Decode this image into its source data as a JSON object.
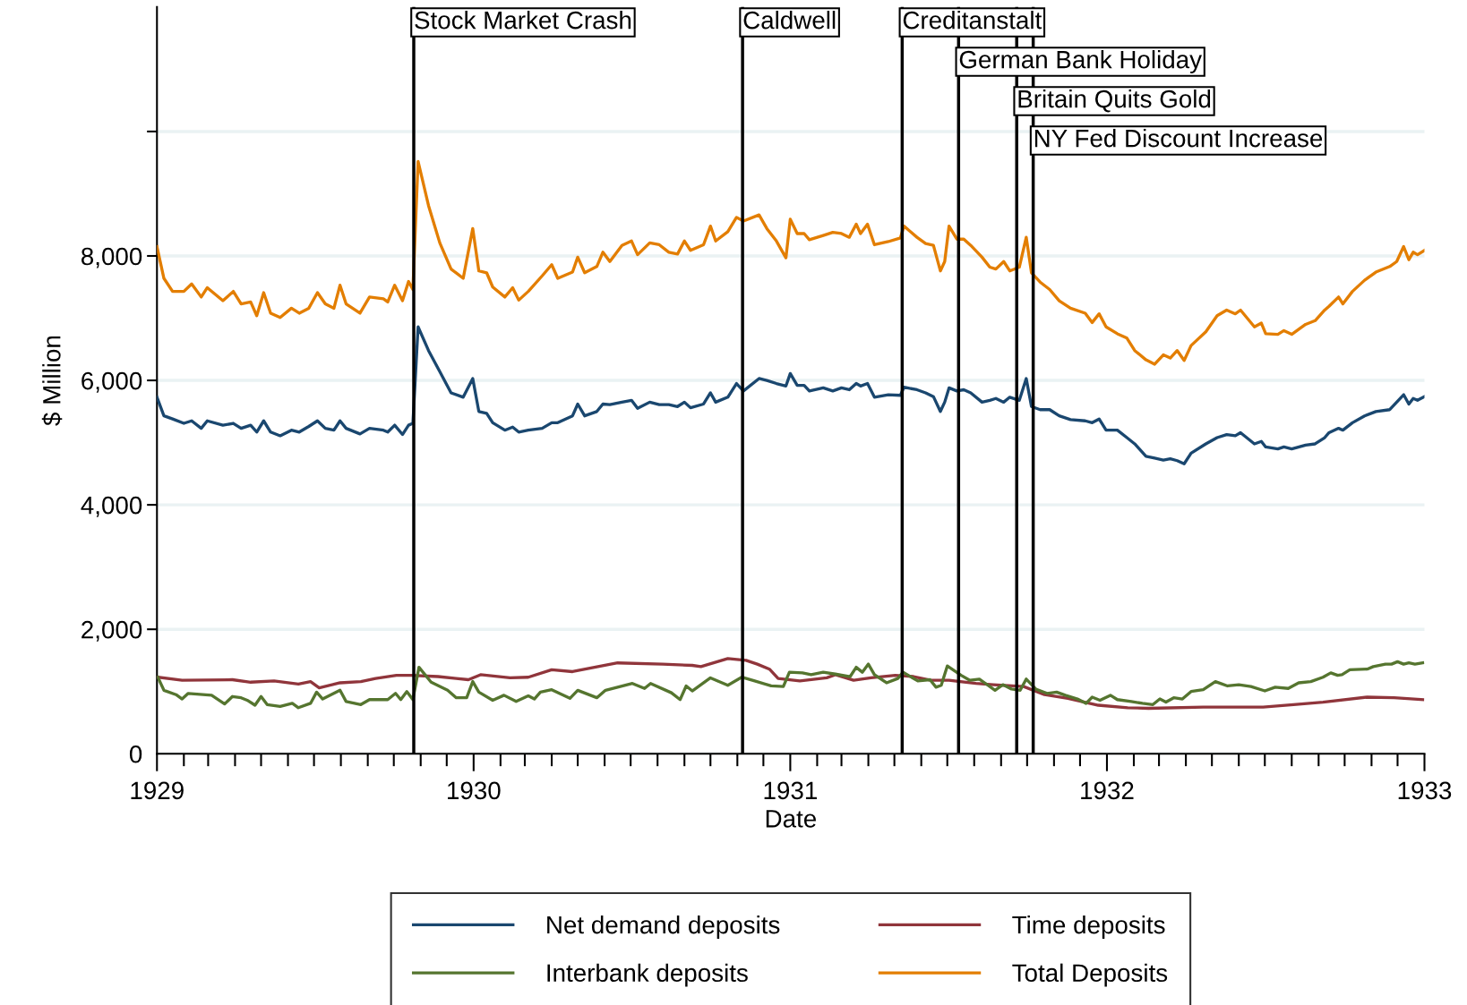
{
  "chart_data": {
    "type": "line",
    "xlabel": "Date",
    "ylabel": "$ Million",
    "xlim": [
      "1929",
      "1933"
    ],
    "ylim": [
      0,
      12000
    ],
    "xticks": [
      "1929",
      {
        "value": "1929-02",
        "label": null
      },
      {
        "value": "1929-03",
        "label": null
      },
      {
        "value": "1929-04",
        "label": null
      },
      {
        "value": "1929-05",
        "label": null
      },
      {
        "value": "1929-06",
        "label": null
      },
      {
        "value": "1929-07",
        "label": null
      },
      {
        "value": "1929-08",
        "label": null
      },
      {
        "value": "1929-09",
        "label": null
      },
      {
        "value": "1929-10",
        "label": null
      },
      {
        "value": "1929-11",
        "label": null
      },
      {
        "value": "1929-12",
        "label": null
      },
      "1930",
      {
        "value": "1930-02",
        "label": null
      },
      {
        "value": "1930-03",
        "label": null
      },
      {
        "value": "1930-04",
        "label": null
      },
      {
        "value": "1930-05",
        "label": null
      },
      {
        "value": "1930-06",
        "label": null
      },
      {
        "value": "1930-07",
        "label": null
      },
      {
        "value": "1930-08",
        "label": null
      },
      {
        "value": "1930-09",
        "label": null
      },
      {
        "value": "1930-10",
        "label": null
      },
      {
        "value": "1930-11",
        "label": null
      },
      {
        "value": "1930-12",
        "label": null
      },
      "1931",
      {
        "value": "1931-02",
        "label": null
      },
      {
        "value": "1931-03",
        "label": null
      },
      {
        "value": "1931-04",
        "label": null
      },
      {
        "value": "1931-05",
        "label": null
      },
      {
        "value": "1931-06",
        "label": null
      },
      {
        "value": "1931-07",
        "label": null
      },
      {
        "value": "1931-08",
        "label": null
      },
      {
        "value": "1931-09",
        "label": null
      },
      {
        "value": "1931-10",
        "label": null
      },
      {
        "value": "1931-11",
        "label": null
      },
      {
        "value": "1931-12",
        "label": null
      },
      "1932",
      {
        "value": "1932-02",
        "label": null
      },
      {
        "value": "1932-03",
        "label": null
      },
      {
        "value": "1932-04",
        "label": null
      },
      {
        "value": "1932-05",
        "label": null
      },
      {
        "value": "1932-06",
        "label": null
      },
      {
        "value": "1932-07",
        "label": null
      },
      {
        "value": "1932-08",
        "label": null
      },
      {
        "value": "1932-09",
        "label": null
      },
      {
        "value": "1932-10",
        "label": null
      },
      {
        "value": "1932-11",
        "label": null
      },
      {
        "value": "1932-12",
        "label": null
      },
      "1933"
    ],
    "yticks": [
      0,
      {
        "value": 2000,
        "label": "2,000"
      },
      {
        "value": 4000,
        "label": "4,000"
      },
      {
        "value": 6000,
        "label": "6,000"
      },
      {
        "value": 8000,
        "label": "8,000"
      },
      {
        "value": 10000,
        "label": null
      }
    ],
    "grid": "y",
    "legend": "bottom",
    "line_style": "solid",
    "marker": "none",
    "x": [
      "1929-01-01",
      "1929-01-09",
      "1929-01-19",
      "1929-02-01",
      "1929-02-10",
      "1929-02-21",
      "1929-02-28",
      "1929-03-18",
      "1929-03-30",
      "1929-04-08",
      "1929-04-19",
      "1929-04-26",
      "1929-05-04",
      "1929-05-12",
      "1929-05-23",
      "1929-06-05",
      "1929-06-14",
      "1929-06-25",
      "1929-07-05",
      "1929-07-14",
      "1929-07-24",
      "1929-07-31",
      "1929-08-07",
      "1929-08-23",
      "1929-09-03",
      "1929-09-19",
      "1929-09-24",
      "1929-10-02",
      "1929-10-11",
      "1929-10-18",
      "1929-10-23",
      "1929-10-29",
      "1929-11-10",
      "1929-11-23",
      "1929-12-06",
      "1929-12-20",
      "1929-12-31",
      "1930-01-07",
      "1930-01-16",
      "1930-01-23",
      "1930-02-06",
      "1930-02-15",
      "1930-02-22",
      "1930-03-05",
      "1930-03-21",
      "1930-04-01",
      "1930-04-08",
      "1930-04-25",
      "1930-05-01",
      "1930-05-09",
      "1930-05-23",
      "1930-05-30",
      "1930-06-07",
      "1930-06-21",
      "1930-07-02",
      "1930-07-09",
      "1930-07-23",
      "1930-08-03",
      "1930-08-14",
      "1930-08-24",
      "1930-09-01",
      "1930-09-08",
      "1930-09-23",
      "1930-10-01",
      "1930-10-07",
      "1930-10-21",
      "1930-10-31",
      "1930-11-08",
      "1930-11-26",
      "1930-12-05",
      "1930-12-16",
      "1930-12-27",
      "1931-01-01",
      "1931-01-09",
      "1931-01-17",
      "1931-01-23",
      "1931-02-08",
      "1931-02-19",
      "1931-03-01",
      "1931-03-10",
      "1931-03-18",
      "1931-03-23",
      "1931-03-31",
      "1931-04-08",
      "1931-04-24",
      "1931-05-08",
      "1931-05-12",
      "1931-05-27",
      "1931-06-06",
      "1931-06-15",
      "1931-06-23",
      "1931-06-28",
      "1931-07-03",
      "1931-07-12",
      "1931-07-20",
      "1931-07-28",
      "1931-08-10",
      "1931-08-19",
      "1931-08-26",
      "1931-09-04",
      "1931-09-11",
      "1931-09-22",
      "1931-09-30",
      "1931-10-06",
      "1931-10-16",
      "1931-10-27",
      "1931-11-07",
      "1931-11-20",
      "1931-12-07",
      "1931-12-15",
      "1931-12-23",
      "1931-12-31",
      "1932-01-13",
      "1932-01-24",
      "1932-02-02",
      "1932-02-15",
      "1932-02-25",
      "1932-03-06",
      "1932-03-14",
      "1932-03-22",
      "1932-03-30",
      "1932-04-07",
      "1932-04-24",
      "1932-05-07",
      "1932-05-18",
      "1932-05-28",
      "1932-06-03",
      "1932-06-19",
      "1932-06-27",
      "1932-07-02",
      "1932-07-16",
      "1932-07-23",
      "1932-08-01",
      "1932-08-17",
      "1932-08-28",
      "1932-09-08",
      "1932-09-13",
      "1932-09-24",
      "1932-09-29",
      "1932-10-10",
      "1932-10-24",
      "1932-11-06",
      "1932-11-22",
      "1932-11-30",
      "1932-12-08",
      "1932-12-14",
      "1932-12-19",
      "1932-12-24",
      "1933-01-01"
    ],
    "series": [
      {
        "name": "Net demand deposits",
        "color": "#1a476f",
        "values": [
          5730,
          5430,
          5380,
          5310,
          5350,
          5230,
          5350,
          5280,
          5310,
          5230,
          5280,
          5170,
          5350,
          5170,
          5110,
          5200,
          5170,
          5260,
          5350,
          5230,
          5200,
          5350,
          5230,
          5140,
          5230,
          5200,
          5170,
          5280,
          5130,
          5280,
          5310,
          6860,
          6480,
          6140,
          5800,
          5730,
          6030,
          5500,
          5470,
          5320,
          5200,
          5250,
          5170,
          5200,
          5230,
          5320,
          5320,
          5430,
          5620,
          5430,
          5500,
          5620,
          5610,
          5650,
          5680,
          5550,
          5650,
          5610,
          5610,
          5580,
          5650,
          5560,
          5620,
          5800,
          5650,
          5730,
          5950,
          5830,
          6030,
          6000,
          5950,
          5910,
          6110,
          5920,
          5920,
          5830,
          5880,
          5830,
          5880,
          5850,
          5950,
          5910,
          5950,
          5730,
          5770,
          5760,
          5890,
          5850,
          5800,
          5740,
          5500,
          5650,
          5880,
          5830,
          5850,
          5800,
          5650,
          5680,
          5710,
          5650,
          5730,
          5680,
          6030,
          5580,
          5530,
          5530,
          5430,
          5370,
          5350,
          5320,
          5380,
          5200,
          5200,
          5080,
          4980,
          4780,
          4750,
          4720,
          4740,
          4710,
          4660,
          4830,
          4980,
          5080,
          5130,
          5110,
          5160,
          4980,
          5020,
          4930,
          4900,
          4930,
          4900,
          4960,
          4980,
          5080,
          5160,
          5230,
          5200,
          5320,
          5430,
          5500,
          5530,
          5650,
          5770,
          5620,
          5710,
          5680,
          5740
        ]
      },
      {
        "name": "Time deposits",
        "color": "#90353b",
        "x": [
          "1929-01-02",
          "1929-01-30",
          "1929-03-29",
          "1929-04-19",
          "1929-05-16",
          "1929-06-13",
          "1929-06-27",
          "1929-07-07",
          "1929-07-31",
          "1929-08-24",
          "1929-09-10",
          "1929-10-04",
          "1929-10-21",
          "1929-11-21",
          "1929-12-12",
          "1929-12-26",
          "1930-01-09",
          "1930-02-12",
          "1930-03-05",
          "1930-04-01",
          "1930-04-25",
          "1930-06-16",
          "1930-08-07",
          "1930-09-10",
          "1930-09-20",
          "1930-10-21",
          "1930-11-11",
          "1930-11-24",
          "1930-12-08",
          "1930-12-18",
          "1931-01-12",
          "1931-02-12",
          "1931-02-22",
          "1931-03-15",
          "1931-04-04",
          "1931-05-02",
          "1931-05-23",
          "1931-06-12",
          "1931-07-03",
          "1931-08-03",
          "1931-08-23",
          "1931-09-27",
          "1931-10-21",
          "1931-11-17",
          "1931-12-22",
          "1932-01-25",
          "1932-02-18",
          "1932-04-21",
          "1932-06-29",
          "1932-08-03",
          "1932-09-06",
          "1932-10-27",
          "1932-11-27",
          "1932-12-30"
        ],
        "values": [
          1230,
          1180,
          1190,
          1150,
          1170,
          1120,
          1160,
          1060,
          1140,
          1160,
          1210,
          1260,
          1260,
          1240,
          1210,
          1190,
          1270,
          1220,
          1230,
          1350,
          1320,
          1460,
          1440,
          1420,
          1400,
          1530,
          1500,
          1440,
          1360,
          1210,
          1170,
          1220,
          1270,
          1180,
          1220,
          1260,
          1240,
          1180,
          1180,
          1130,
          1110,
          1080,
          950,
          890,
          780,
          740,
          730,
          750,
          750,
          790,
          830,
          910,
          900,
          870
        ]
      },
      {
        "name": "Interbank deposits",
        "color": "#55752f",
        "x": [
          "1929-01-02",
          "1929-01-09",
          "1929-01-23",
          "1929-01-30",
          "1929-02-06",
          "1929-03-05",
          "1929-03-20",
          "1929-03-29",
          "1929-04-08",
          "1929-04-15",
          "1929-04-24",
          "1929-05-01",
          "1929-05-08",
          "1929-05-23",
          "1929-06-06",
          "1929-06-13",
          "1929-06-27",
          "1929-07-04",
          "1929-07-11",
          "1929-07-31",
          "1929-08-07",
          "1929-08-24",
          "1929-09-03",
          "1929-09-24",
          "1929-10-03",
          "1929-10-09",
          "1929-10-16",
          "1929-10-23",
          "1929-10-30",
          "1929-11-13",
          "1929-12-02",
          "1929-12-12",
          "1929-12-24",
          "1929-12-31",
          "1930-01-07",
          "1930-01-23",
          "1930-02-05",
          "1930-02-19",
          "1930-03-05",
          "1930-03-12",
          "1930-03-19",
          "1930-04-01",
          "1930-04-22",
          "1930-05-01",
          "1930-05-23",
          "1930-06-02",
          "1930-07-03",
          "1930-07-17",
          "1930-07-24",
          "1930-08-17",
          "1930-08-27",
          "1930-09-03",
          "1930-09-10",
          "1930-10-01",
          "1930-10-21",
          "1930-11-06",
          "1930-11-21",
          "1930-12-10",
          "1930-12-24",
          "1930-12-31",
          "1931-01-15",
          "1931-01-25",
          "1931-02-08",
          "1931-02-22",
          "1931-03-11",
          "1931-03-18",
          "1931-03-25",
          "1931-04-01",
          "1931-04-08",
          "1931-04-22",
          "1931-05-05",
          "1931-05-11",
          "1931-05-28",
          "1931-06-11",
          "1931-06-18",
          "1931-06-24",
          "1931-07-01",
          "1931-07-17",
          "1931-07-27",
          "1931-08-07",
          "1931-08-13",
          "1931-08-25",
          "1931-09-03",
          "1931-09-13",
          "1931-09-23",
          "1931-09-30",
          "1931-10-11",
          "1931-10-24",
          "1931-11-04",
          "1931-11-14",
          "1931-11-28",
          "1931-12-08",
          "1931-12-15",
          "1931-12-24",
          "1932-01-05",
          "1932-01-13",
          "1932-01-29",
          "1932-02-11",
          "1932-02-23",
          "1932-03-02",
          "1932-03-09",
          "1932-03-18",
          "1932-03-28",
          "1932-04-07",
          "1932-04-21",
          "1932-05-05",
          "1932-05-19",
          "1932-06-01",
          "1932-06-15",
          "1932-07-01",
          "1932-07-13",
          "1932-07-28",
          "1932-08-09",
          "1932-08-23",
          "1932-09-06",
          "1932-09-15",
          "1932-09-23",
          "1932-09-28",
          "1932-10-07",
          "1932-10-27",
          "1932-11-03",
          "1932-11-17",
          "1932-11-24",
          "1932-12-01",
          "1932-12-08",
          "1932-12-14",
          "1932-12-21",
          "1932-12-30"
        ],
        "values": [
          1230,
          1020,
          950,
          880,
          970,
          940,
          800,
          920,
          900,
          860,
          780,
          920,
          790,
          760,
          810,
          740,
          810,
          990,
          880,
          1020,
          840,
          790,
          870,
          870,
          970,
          870,
          1000,
          870,
          1390,
          1150,
          1020,
          900,
          900,
          1160,
          990,
          860,
          940,
          840,
          930,
          880,
          990,
          1030,
          890,
          1020,
          900,
          1020,
          1130,
          1050,
          1130,
          980,
          870,
          1090,
          1010,
          1220,
          1100,
          1230,
          1170,
          1090,
          1080,
          1310,
          1300,
          1270,
          1310,
          1280,
          1240,
          1390,
          1310,
          1440,
          1270,
          1140,
          1210,
          1310,
          1170,
          1190,
          1070,
          1100,
          1410,
          1260,
          1180,
          1200,
          1140,
          1020,
          1110,
          1040,
          1020,
          1200,
          1040,
          970,
          990,
          940,
          880,
          810,
          910,
          860,
          940,
          870,
          840,
          810,
          790,
          880,
          830,
          900,
          880,
          1000,
          1030,
          1160,
          1090,
          1110,
          1080,
          1010,
          1070,
          1050,
          1140,
          1160,
          1230,
          1300,
          1260,
          1270,
          1350,
          1360,
          1400,
          1440,
          1440,
          1480,
          1440,
          1460,
          1440,
          1460
        ]
      },
      {
        "name": "Total Deposits",
        "color": "#e37e00",
        "values": [
          8150,
          7640,
          7430,
          7430,
          7550,
          7340,
          7490,
          7280,
          7430,
          7230,
          7260,
          7040,
          7410,
          7080,
          7010,
          7160,
          7080,
          7160,
          7410,
          7230,
          7160,
          7530,
          7230,
          7080,
          7340,
          7310,
          7260,
          7530,
          7280,
          7590,
          7460,
          9520,
          8810,
          8210,
          7790,
          7640,
          8440,
          7760,
          7730,
          7500,
          7340,
          7490,
          7290,
          7430,
          7680,
          7860,
          7640,
          7740,
          7980,
          7730,
          7830,
          8060,
          7910,
          8170,
          8240,
          8020,
          8210,
          8180,
          8060,
          8030,
          8240,
          8090,
          8180,
          8480,
          8240,
          8390,
          8620,
          8560,
          8660,
          8440,
          8240,
          7970,
          8590,
          8360,
          8360,
          8260,
          8330,
          8380,
          8360,
          8300,
          8510,
          8360,
          8510,
          8180,
          8230,
          8290,
          8480,
          8300,
          8200,
          8170,
          7760,
          7910,
          8480,
          8270,
          8270,
          8170,
          7980,
          7820,
          7790,
          7910,
          7760,
          7820,
          8300,
          7730,
          7580,
          7460,
          7280,
          7160,
          7080,
          6930,
          7070,
          6860,
          6750,
          6680,
          6480,
          6330,
          6260,
          6410,
          6360,
          6480,
          6320,
          6560,
          6780,
          7040,
          7130,
          7070,
          7130,
          6860,
          6920,
          6750,
          6740,
          6800,
          6740,
          6900,
          6960,
          7130,
          7190,
          7340,
          7230,
          7430,
          7610,
          7740,
          7830,
          7910,
          8150,
          7940,
          8060,
          8020,
          8090
        ]
      }
    ],
    "ref_lines": [
      {
        "axis": "x",
        "value": "1929-10-24",
        "label": "Stock Market Crash",
        "color": "#000000"
      },
      {
        "axis": "x",
        "value": "1930-11-07",
        "label": "Caldwell",
        "color": "#000000"
      },
      {
        "axis": "x",
        "value": "1931-05-10",
        "label": "Creditanstalt",
        "color": "#000000"
      },
      {
        "axis": "x",
        "value": "1931-07-14",
        "label": "German Bank Holiday",
        "color": "#000000"
      },
      {
        "axis": "x",
        "value": "1931-09-19",
        "label": "Britain Quits Gold",
        "color": "#000000"
      },
      {
        "axis": "x",
        "value": "1931-10-08",
        "label": "NY Fed Discount Increase",
        "color": "#000000"
      }
    ]
  }
}
